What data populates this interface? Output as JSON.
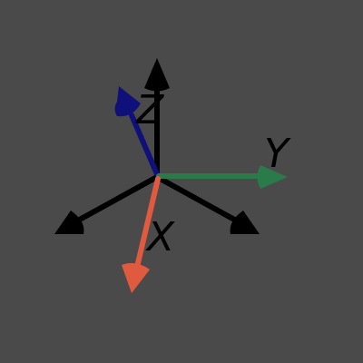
{
  "viewport": {
    "background": "#4a4a4a"
  },
  "gizmo": {
    "axes": [
      {
        "id": "x",
        "label": "X",
        "color": "#e05a40",
        "arrow_icon": "cone-arrow-icon"
      },
      {
        "id": "y",
        "label": "Y",
        "color": "#2a7a4a",
        "arrow_icon": "cone-arrow-icon"
      },
      {
        "id": "z",
        "label": "Z",
        "color": "#10107a",
        "arrow_icon": "cone-arrow-icon"
      }
    ],
    "reference_axes": {
      "color": "#000000",
      "count": 3,
      "arrow_icon": "cone-arrow-icon"
    }
  }
}
